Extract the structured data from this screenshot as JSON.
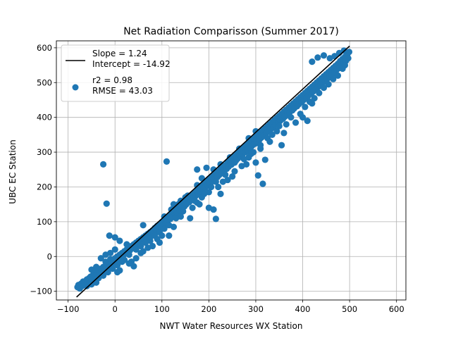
{
  "chart_data": {
    "type": "scatter",
    "title": "Net Radiation Comparisson (Summer 2017)",
    "xlabel": "NWT Water Resources WX Station",
    "ylabel": "UBC EC Station",
    "xlim": [
      -125,
      620
    ],
    "ylim": [
      -125,
      620
    ],
    "xticks": [
      -100,
      0,
      100,
      200,
      300,
      400,
      500,
      600
    ],
    "yticks": [
      -100,
      0,
      100,
      200,
      300,
      400,
      500,
      600
    ],
    "grid": true,
    "legend_position": "upper-left",
    "legend": {
      "line_entry": [
        "Slope = 1.24",
        "Intercept = -14.92"
      ],
      "scatter_entry": [
        "r2 = 0.98",
        "RMSE = 43.03"
      ]
    },
    "fit_line": {
      "slope": 1.24,
      "intercept": -14.92,
      "x_range": [
        -82,
        500
      ],
      "color": "#000000"
    },
    "marker_color": "#1f77b4",
    "points": [
      [
        -80,
        -88
      ],
      [
        -78,
        -82
      ],
      [
        -75,
        -92
      ],
      [
        -72,
        -78
      ],
      [
        -70,
        -85
      ],
      [
        -68,
        -72
      ],
      [
        -65,
        -80
      ],
      [
        -62,
        -70
      ],
      [
        -60,
        -66
      ],
      [
        -58,
        -75
      ],
      [
        -55,
        -62
      ],
      [
        -52,
        -58
      ],
      [
        -50,
        -68
      ],
      [
        -48,
        -55
      ],
      [
        -45,
        -50
      ],
      [
        -42,
        -60
      ],
      [
        -40,
        -45
      ],
      [
        -38,
        -52
      ],
      [
        -35,
        -40
      ],
      [
        -32,
        -48
      ],
      [
        -30,
        -35
      ],
      [
        -28,
        -44
      ],
      [
        -25,
        -30
      ],
      [
        -22,
        -38
      ],
      [
        -20,
        -26
      ],
      [
        -18,
        -32
      ],
      [
        -15,
        -20
      ],
      [
        -12,
        -28
      ],
      [
        -10,
        -15
      ],
      [
        -8,
        -22
      ],
      [
        -5,
        -10
      ],
      [
        -2,
        -18
      ],
      [
        0,
        -5
      ],
      [
        3,
        -12
      ],
      [
        5,
        0
      ],
      [
        8,
        -6
      ],
      [
        10,
        5
      ],
      [
        12,
        -2
      ],
      [
        15,
        10
      ],
      [
        18,
        4
      ],
      [
        20,
        15
      ],
      [
        22,
        8
      ],
      [
        25,
        20
      ],
      [
        28,
        14
      ],
      [
        30,
        25
      ],
      [
        32,
        18
      ],
      [
        35,
        30
      ],
      [
        38,
        24
      ],
      [
        40,
        35
      ],
      [
        42,
        28
      ],
      [
        45,
        40
      ],
      [
        48,
        34
      ],
      [
        50,
        45
      ],
      [
        52,
        38
      ],
      [
        55,
        50
      ],
      [
        58,
        44
      ],
      [
        60,
        55
      ],
      [
        62,
        48
      ],
      [
        65,
        60
      ],
      [
        68,
        54
      ],
      [
        70,
        65
      ],
      [
        72,
        58
      ],
      [
        75,
        70
      ],
      [
        78,
        64
      ],
      [
        80,
        75
      ],
      [
        82,
        68
      ],
      [
        85,
        82
      ],
      [
        88,
        74
      ],
      [
        90,
        88
      ],
      [
        92,
        80
      ],
      [
        95,
        92
      ],
      [
        98,
        86
      ],
      [
        100,
        98
      ],
      [
        102,
        90
      ],
      [
        105,
        104
      ],
      [
        108,
        96
      ],
      [
        110,
        110
      ],
      [
        112,
        102
      ],
      [
        115,
        116
      ],
      [
        118,
        108
      ],
      [
        120,
        122
      ],
      [
        122,
        114
      ],
      [
        125,
        128
      ],
      [
        128,
        120
      ],
      [
        130,
        134
      ],
      [
        132,
        126
      ],
      [
        135,
        140
      ],
      [
        138,
        132
      ],
      [
        140,
        146
      ],
      [
        142,
        138
      ],
      [
        145,
        152
      ],
      [
        148,
        144
      ],
      [
        150,
        158
      ],
      [
        152,
        150
      ],
      [
        155,
        164
      ],
      [
        158,
        156
      ],
      [
        160,
        170
      ],
      [
        162,
        162
      ],
      [
        165,
        176
      ],
      [
        168,
        168
      ],
      [
        170,
        182
      ],
      [
        172,
        174
      ],
      [
        175,
        190
      ],
      [
        178,
        180
      ],
      [
        180,
        196
      ],
      [
        182,
        186
      ],
      [
        185,
        202
      ],
      [
        188,
        192
      ],
      [
        190,
        208
      ],
      [
        192,
        198
      ],
      [
        195,
        214
      ],
      [
        198,
        204
      ],
      [
        200,
        220
      ],
      [
        202,
        210
      ],
      [
        205,
        226
      ],
      [
        208,
        216
      ],
      [
        210,
        232
      ],
      [
        212,
        222
      ],
      [
        215,
        238
      ],
      [
        218,
        228
      ],
      [
        220,
        244
      ],
      [
        222,
        234
      ],
      [
        225,
        250
      ],
      [
        228,
        240
      ],
      [
        230,
        256
      ],
      [
        232,
        246
      ],
      [
        235,
        262
      ],
      [
        238,
        252
      ],
      [
        240,
        270
      ],
      [
        242,
        258
      ],
      [
        245,
        276
      ],
      [
        248,
        264
      ],
      [
        250,
        282
      ],
      [
        252,
        270
      ],
      [
        255,
        288
      ],
      [
        258,
        276
      ],
      [
        260,
        294
      ],
      [
        262,
        282
      ],
      [
        265,
        300
      ],
      [
        268,
        288
      ],
      [
        270,
        306
      ],
      [
        272,
        294
      ],
      [
        275,
        314
      ],
      [
        278,
        300
      ],
      [
        280,
        320
      ],
      [
        282,
        306
      ],
      [
        285,
        326
      ],
      [
        288,
        312
      ],
      [
        290,
        332
      ],
      [
        292,
        318
      ],
      [
        295,
        338
      ],
      [
        298,
        324
      ],
      [
        300,
        344
      ],
      [
        302,
        330
      ],
      [
        305,
        350
      ],
      [
        308,
        336
      ],
      [
        310,
        356
      ],
      [
        312,
        342
      ],
      [
        315,
        362
      ],
      [
        318,
        348
      ],
      [
        320,
        368
      ],
      [
        322,
        354
      ],
      [
        325,
        374
      ],
      [
        328,
        360
      ],
      [
        330,
        380
      ],
      [
        332,
        366
      ],
      [
        335,
        386
      ],
      [
        338,
        372
      ],
      [
        340,
        392
      ],
      [
        342,
        378
      ],
      [
        345,
        398
      ],
      [
        348,
        384
      ],
      [
        350,
        404
      ],
      [
        352,
        390
      ],
      [
        355,
        410
      ],
      [
        358,
        396
      ],
      [
        360,
        416
      ],
      [
        362,
        402
      ],
      [
        365,
        422
      ],
      [
        368,
        408
      ],
      [
        370,
        428
      ],
      [
        372,
        414
      ],
      [
        375,
        434
      ],
      [
        378,
        420
      ],
      [
        380,
        440
      ],
      [
        382,
        426
      ],
      [
        385,
        446
      ],
      [
        388,
        432
      ],
      [
        390,
        452
      ],
      [
        392,
        438
      ],
      [
        395,
        458
      ],
      [
        398,
        444
      ],
      [
        400,
        464
      ],
      [
        402,
        450
      ],
      [
        405,
        470
      ],
      [
        408,
        456
      ],
      [
        410,
        476
      ],
      [
        412,
        462
      ],
      [
        415,
        482
      ],
      [
        418,
        468
      ],
      [
        420,
        488
      ],
      [
        422,
        474
      ],
      [
        425,
        494
      ],
      [
        428,
        480
      ],
      [
        430,
        500
      ],
      [
        432,
        486
      ],
      [
        435,
        506
      ],
      [
        438,
        492
      ],
      [
        440,
        512
      ],
      [
        442,
        498
      ],
      [
        445,
        518
      ],
      [
        448,
        504
      ],
      [
        450,
        524
      ],
      [
        452,
        510
      ],
      [
        455,
        530
      ],
      [
        458,
        516
      ],
      [
        460,
        536
      ],
      [
        462,
        522
      ],
      [
        465,
        542
      ],
      [
        468,
        530
      ],
      [
        470,
        548
      ],
      [
        472,
        536
      ],
      [
        475,
        554
      ],
      [
        478,
        542
      ],
      [
        480,
        562
      ],
      [
        482,
        548
      ],
      [
        485,
        568
      ],
      [
        488,
        556
      ],
      [
        490,
        574
      ],
      [
        492,
        562
      ],
      [
        495,
        580
      ],
      [
        497,
        570
      ],
      [
        499,
        588
      ],
      [
        488,
        592
      ],
      [
        478,
        585
      ],
      [
        468,
        576
      ],
      [
        458,
        570
      ],
      [
        445,
        578
      ],
      [
        432,
        572
      ],
      [
        420,
        560
      ],
      [
        -25,
        265
      ],
      [
        -18,
        152
      ],
      [
        15,
        -5
      ],
      [
        110,
        273
      ],
      [
        125,
        150
      ],
      [
        140,
        115
      ],
      [
        150,
        170
      ],
      [
        175,
        250
      ],
      [
        175,
        155
      ],
      [
        195,
        255
      ],
      [
        200,
        140
      ],
      [
        210,
        135
      ],
      [
        215,
        108
      ],
      [
        225,
        180
      ],
      [
        230,
        215
      ],
      [
        255,
        270
      ],
      [
        265,
        295
      ],
      [
        280,
        265
      ],
      [
        300,
        270
      ],
      [
        305,
        233
      ],
      [
        315,
        209
      ],
      [
        320,
        278
      ],
      [
        330,
        330
      ],
      [
        350,
        375
      ],
      [
        355,
        320
      ],
      [
        360,
        355
      ],
      [
        385,
        385
      ],
      [
        400,
        400
      ],
      [
        410,
        390
      ],
      [
        420,
        440
      ],
      [
        -12,
        60
      ],
      [
        0,
        55
      ],
      [
        10,
        45
      ],
      [
        25,
        35
      ],
      [
        40,
        -28
      ],
      [
        55,
        10
      ],
      [
        60,
        90
      ],
      [
        75,
        45
      ],
      [
        95,
        40
      ],
      [
        115,
        60
      ],
      [
        125,
        85
      ],
      [
        140,
        160
      ],
      [
        160,
        110
      ],
      [
        165,
        140
      ],
      [
        180,
        150
      ],
      [
        185,
        170
      ],
      [
        200,
        185
      ],
      [
        220,
        200
      ],
      [
        240,
        220
      ],
      [
        250,
        230
      ],
      [
        270,
        260
      ],
      [
        285,
        285
      ],
      [
        295,
        300
      ],
      [
        310,
        310
      ],
      [
        325,
        340
      ],
      [
        335,
        350
      ],
      [
        345,
        360
      ],
      [
        365,
        380
      ],
      [
        375,
        400
      ],
      [
        395,
        410
      ],
      [
        405,
        430
      ],
      [
        415,
        445
      ],
      [
        425,
        455
      ],
      [
        435,
        470
      ],
      [
        445,
        485
      ],
      [
        455,
        495
      ],
      [
        465,
        510
      ],
      [
        475,
        520
      ],
      [
        485,
        540
      ],
      [
        490,
        550
      ],
      [
        -60,
        -85
      ],
      [
        -50,
        -80
      ],
      [
        -40,
        -75
      ],
      [
        -35,
        -62
      ],
      [
        -25,
        -55
      ],
      [
        -15,
        -45
      ],
      [
        -5,
        -35
      ],
      [
        5,
        -25
      ],
      [
        10,
        -40
      ],
      [
        20,
        -10
      ],
      [
        30,
        5
      ],
      [
        35,
        -15
      ],
      [
        45,
        20
      ],
      [
        55,
        30
      ],
      [
        65,
        40
      ],
      [
        75,
        55
      ],
      [
        85,
        60
      ],
      [
        95,
        70
      ],
      [
        105,
        80
      ],
      [
        115,
        90
      ],
      [
        -30,
        -5
      ],
      [
        -20,
        -15
      ],
      [
        -10,
        -8
      ],
      [
        -40,
        -30
      ],
      [
        -50,
        -38
      ],
      [
        -20,
        5
      ],
      [
        -10,
        10
      ],
      [
        0,
        20
      ],
      [
        5,
        -45
      ],
      [
        15,
        -15
      ],
      [
        30,
        -20
      ],
      [
        45,
        -5
      ],
      [
        60,
        15
      ],
      [
        70,
        25
      ],
      [
        80,
        30
      ],
      [
        90,
        50
      ],
      [
        100,
        60
      ],
      [
        105,
        115
      ],
      [
        120,
        135
      ],
      [
        130,
        110
      ],
      [
        135,
        150
      ],
      [
        145,
        130
      ],
      [
        155,
        175
      ],
      [
        170,
        160
      ],
      [
        175,
        205
      ],
      [
        185,
        225
      ],
      [
        190,
        180
      ],
      [
        205,
        200
      ],
      [
        210,
        250
      ],
      [
        215,
        215
      ],
      [
        225,
        265
      ],
      [
        235,
        235
      ],
      [
        245,
        285
      ],
      [
        255,
        245
      ],
      [
        265,
        310
      ],
      [
        275,
        280
      ],
      [
        285,
        340
      ],
      [
        290,
        295
      ],
      [
        300,
        360
      ],
      [
        310,
        320
      ]
    ]
  }
}
